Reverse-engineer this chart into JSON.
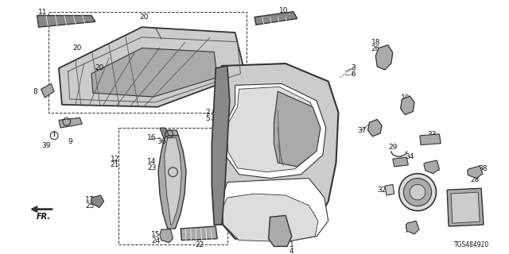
{
  "title": "",
  "diagram_id": "TGS484920",
  "bg_color": "#ffffff",
  "line_color": "#333333",
  "text_color": "#111111",
  "fig_width": 6.4,
  "fig_height": 3.2,
  "dpi": 100
}
